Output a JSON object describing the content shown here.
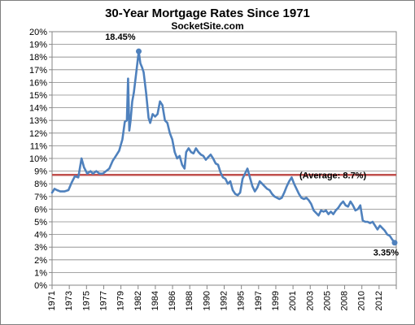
{
  "chart_data": {
    "type": "line",
    "title": "30-Year Mortgage Rates Since 1971",
    "subtitle": "SocketSite.com",
    "xlabel": "",
    "ylabel": "",
    "ylim": [
      0,
      20
    ],
    "y_ticks": [
      "0%",
      "1%",
      "2%",
      "3%",
      "4%",
      "5%",
      "6%",
      "7%",
      "8%",
      "9%",
      "10%",
      "11%",
      "12%",
      "13%",
      "14%",
      "15%",
      "16%",
      "17%",
      "18%",
      "19%",
      "20%"
    ],
    "x_ticks": [
      "1971",
      "1973",
      "1975",
      "1977",
      "1979",
      "1982",
      "1984",
      "1986",
      "1988",
      "1990",
      "1992",
      "1995",
      "1997",
      "1999",
      "2001",
      "2003",
      "2005",
      "2008",
      "2010",
      "2012"
    ],
    "grid": "horizontal",
    "series": [
      {
        "color": "#4f81bd",
        "x": [
          1971.0,
          1971.3,
          1971.6,
          1972.0,
          1972.5,
          1973.0,
          1973.4,
          1973.8,
          1974.2,
          1974.6,
          1974.9,
          1975.3,
          1975.7,
          1976.0,
          1976.4,
          1976.8,
          1977.2,
          1977.6,
          1978.0,
          1978.4,
          1978.8,
          1979.2,
          1979.6,
          1979.9,
          1980.15,
          1980.3,
          1980.45,
          1980.6,
          1980.8,
          1981.0,
          1981.3,
          1981.6,
          1981.8,
          1982.0,
          1982.2,
          1982.5,
          1982.8,
          1983.0,
          1983.3,
          1983.6,
          1983.9,
          1984.2,
          1984.5,
          1984.8,
          1985.1,
          1985.4,
          1985.7,
          1986.0,
          1986.3,
          1986.6,
          1986.9,
          1987.2,
          1987.4,
          1987.7,
          1988.0,
          1988.3,
          1988.6,
          1988.9,
          1989.2,
          1989.5,
          1989.8,
          1990.1,
          1990.4,
          1990.7,
          1991.0,
          1991.3,
          1991.6,
          1991.9,
          1992.2,
          1992.5,
          1992.8,
          1993.1,
          1993.4,
          1993.7,
          1994.0,
          1994.3,
          1994.6,
          1994.9,
          1995.2,
          1995.5,
          1995.8,
          1996.1,
          1996.4,
          1996.7,
          1997.0,
          1997.3,
          1997.6,
          1997.9,
          1998.2,
          1998.5,
          1998.8,
          1999.1,
          1999.4,
          1999.7,
          2000.0,
          2000.3,
          2000.6,
          2000.9,
          2001.2,
          2001.5,
          2001.8,
          2002.1,
          2002.4,
          2002.7,
          2003.0,
          2003.3,
          2003.6,
          2003.9,
          2004.2,
          2004.5,
          2004.8,
          2005.1,
          2005.4,
          2005.7,
          2006.0,
          2006.3,
          2006.6,
          2006.9,
          2007.2,
          2007.5,
          2007.8,
          2008.1,
          2008.4,
          2008.7,
          2009.0,
          2009.3,
          2009.6,
          2009.9,
          2010.2,
          2010.5,
          2010.8,
          2011.1,
          2011.4,
          2011.7,
          2012.0,
          2012.3,
          2012.6,
          2012.9
        ],
        "values": [
          7.3,
          7.6,
          7.5,
          7.4,
          7.4,
          7.5,
          8.1,
          8.6,
          8.5,
          10.0,
          9.3,
          8.8,
          9.0,
          8.8,
          9.0,
          8.8,
          8.8,
          9.0,
          9.2,
          9.8,
          10.2,
          10.6,
          11.5,
          12.9,
          13.0,
          16.3,
          12.2,
          13.0,
          14.5,
          15.2,
          16.8,
          18.45,
          17.5,
          17.2,
          16.8,
          15.2,
          13.2,
          12.8,
          13.5,
          13.3,
          13.5,
          14.5,
          14.2,
          13.0,
          12.8,
          12.0,
          11.5,
          10.5,
          10.0,
          10.2,
          9.5,
          9.2,
          10.5,
          10.8,
          10.5,
          10.4,
          10.8,
          10.5,
          10.3,
          10.2,
          9.9,
          10.1,
          10.3,
          10.0,
          9.6,
          9.5,
          8.9,
          8.5,
          8.4,
          8.0,
          8.2,
          7.5,
          7.2,
          7.1,
          7.3,
          8.4,
          8.8,
          9.2,
          8.5,
          7.8,
          7.4,
          7.7,
          8.2,
          8.0,
          7.8,
          7.6,
          7.5,
          7.2,
          7.0,
          6.9,
          6.8,
          6.9,
          7.3,
          7.8,
          8.2,
          8.5,
          8.0,
          7.6,
          7.2,
          6.9,
          6.8,
          6.9,
          6.7,
          6.4,
          5.9,
          5.7,
          5.5,
          5.9,
          5.8,
          5.9,
          5.6,
          5.8,
          5.6,
          5.9,
          6.1,
          6.4,
          6.6,
          6.3,
          6.2,
          6.6,
          6.3,
          5.9,
          6.0,
          6.3,
          5.1,
          5.0,
          5.0,
          4.9,
          5.0,
          4.7,
          4.4,
          4.7,
          4.5,
          4.3,
          4.0,
          3.9,
          3.6,
          3.35
        ]
      }
    ],
    "reference_line": {
      "value": 8.7,
      "color": "#c0504d",
      "label": "(Average: 8.7%)"
    },
    "annotations": [
      {
        "text": "18.45%",
        "x": 1981.6,
        "y": 18.45
      },
      {
        "text": "3.35%",
        "x": 2012.9,
        "y": 3.35
      }
    ]
  }
}
